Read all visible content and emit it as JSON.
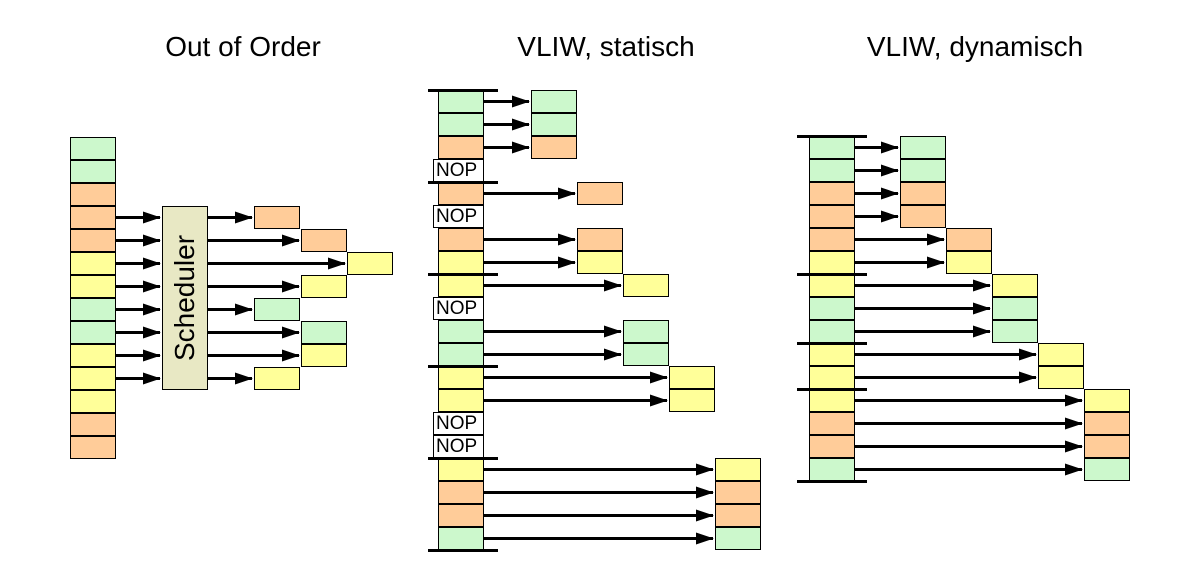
{
  "colors": {
    "green": "#ccf8cc",
    "yellow": "#ffff99",
    "orange": "#ffcc99",
    "nop_fill": "#ffffff",
    "scheduler_fill": "#e8e8c4",
    "line": "#000000",
    "background": "#ffffff"
  },
  "panels": [
    {
      "id": "out-of-order",
      "title": "Out of Order",
      "type": "scheduler",
      "scheduler_label": "Scheduler",
      "stack": [
        "green",
        "green",
        "orange",
        "orange",
        "orange",
        "yellow",
        "yellow",
        "green",
        "green",
        "yellow",
        "yellow",
        "yellow",
        "orange",
        "orange"
      ],
      "input_slots": [
        3,
        4,
        5,
        6,
        7,
        8,
        9,
        10
      ],
      "scheduled_rows": [
        {
          "col": 0,
          "color": "orange"
        },
        {
          "col": 1,
          "color": "orange"
        },
        {
          "col": 2,
          "color": "yellow"
        },
        {
          "col": 1,
          "color": "yellow"
        },
        {
          "col": 0,
          "color": "green"
        },
        {
          "col": 1,
          "color": "green"
        },
        {
          "col": 1,
          "color": "yellow"
        },
        {
          "col": 0,
          "color": "yellow"
        }
      ]
    },
    {
      "id": "vliw-static",
      "title": "VLIW, statisch",
      "type": "vliw",
      "nop_label": "NOP",
      "group_sizes": [
        4,
        4,
        4,
        4,
        4
      ],
      "slots": [
        {
          "color": "green",
          "col": 0
        },
        {
          "color": "green",
          "col": 0
        },
        {
          "color": "orange",
          "col": 0
        },
        {
          "nop": true
        },
        {
          "color": "orange",
          "col": 1
        },
        {
          "nop": true
        },
        {
          "color": "orange",
          "col": 1
        },
        {
          "color": "yellow",
          "col": 1
        },
        {
          "color": "yellow",
          "col": 2
        },
        {
          "nop": true
        },
        {
          "color": "green",
          "col": 2
        },
        {
          "color": "green",
          "col": 2
        },
        {
          "color": "yellow",
          "col": 3
        },
        {
          "color": "yellow",
          "col": 3
        },
        {
          "nop": true
        },
        {
          "nop": true
        },
        {
          "color": "yellow",
          "col": 4
        },
        {
          "color": "orange",
          "col": 4
        },
        {
          "color": "orange",
          "col": 4
        },
        {
          "color": "green",
          "col": 4
        }
      ]
    },
    {
      "id": "vliw-dynamic",
      "title": "VLIW, dynamisch",
      "type": "vliw",
      "group_sizes": [
        6,
        3,
        2,
        4
      ],
      "slots": [
        {
          "color": "green",
          "col": 0
        },
        {
          "color": "green",
          "col": 0
        },
        {
          "color": "orange",
          "col": 0
        },
        {
          "color": "orange",
          "col": 0
        },
        {
          "color": "orange",
          "col": 1
        },
        {
          "color": "yellow",
          "col": 1
        },
        {
          "color": "yellow",
          "col": 2
        },
        {
          "color": "green",
          "col": 2
        },
        {
          "color": "green",
          "col": 2
        },
        {
          "color": "yellow",
          "col": 3
        },
        {
          "color": "yellow",
          "col": 3
        },
        {
          "color": "yellow",
          "col": 4
        },
        {
          "color": "orange",
          "col": 4
        },
        {
          "color": "orange",
          "col": 4
        },
        {
          "color": "green",
          "col": 4
        }
      ]
    }
  ]
}
